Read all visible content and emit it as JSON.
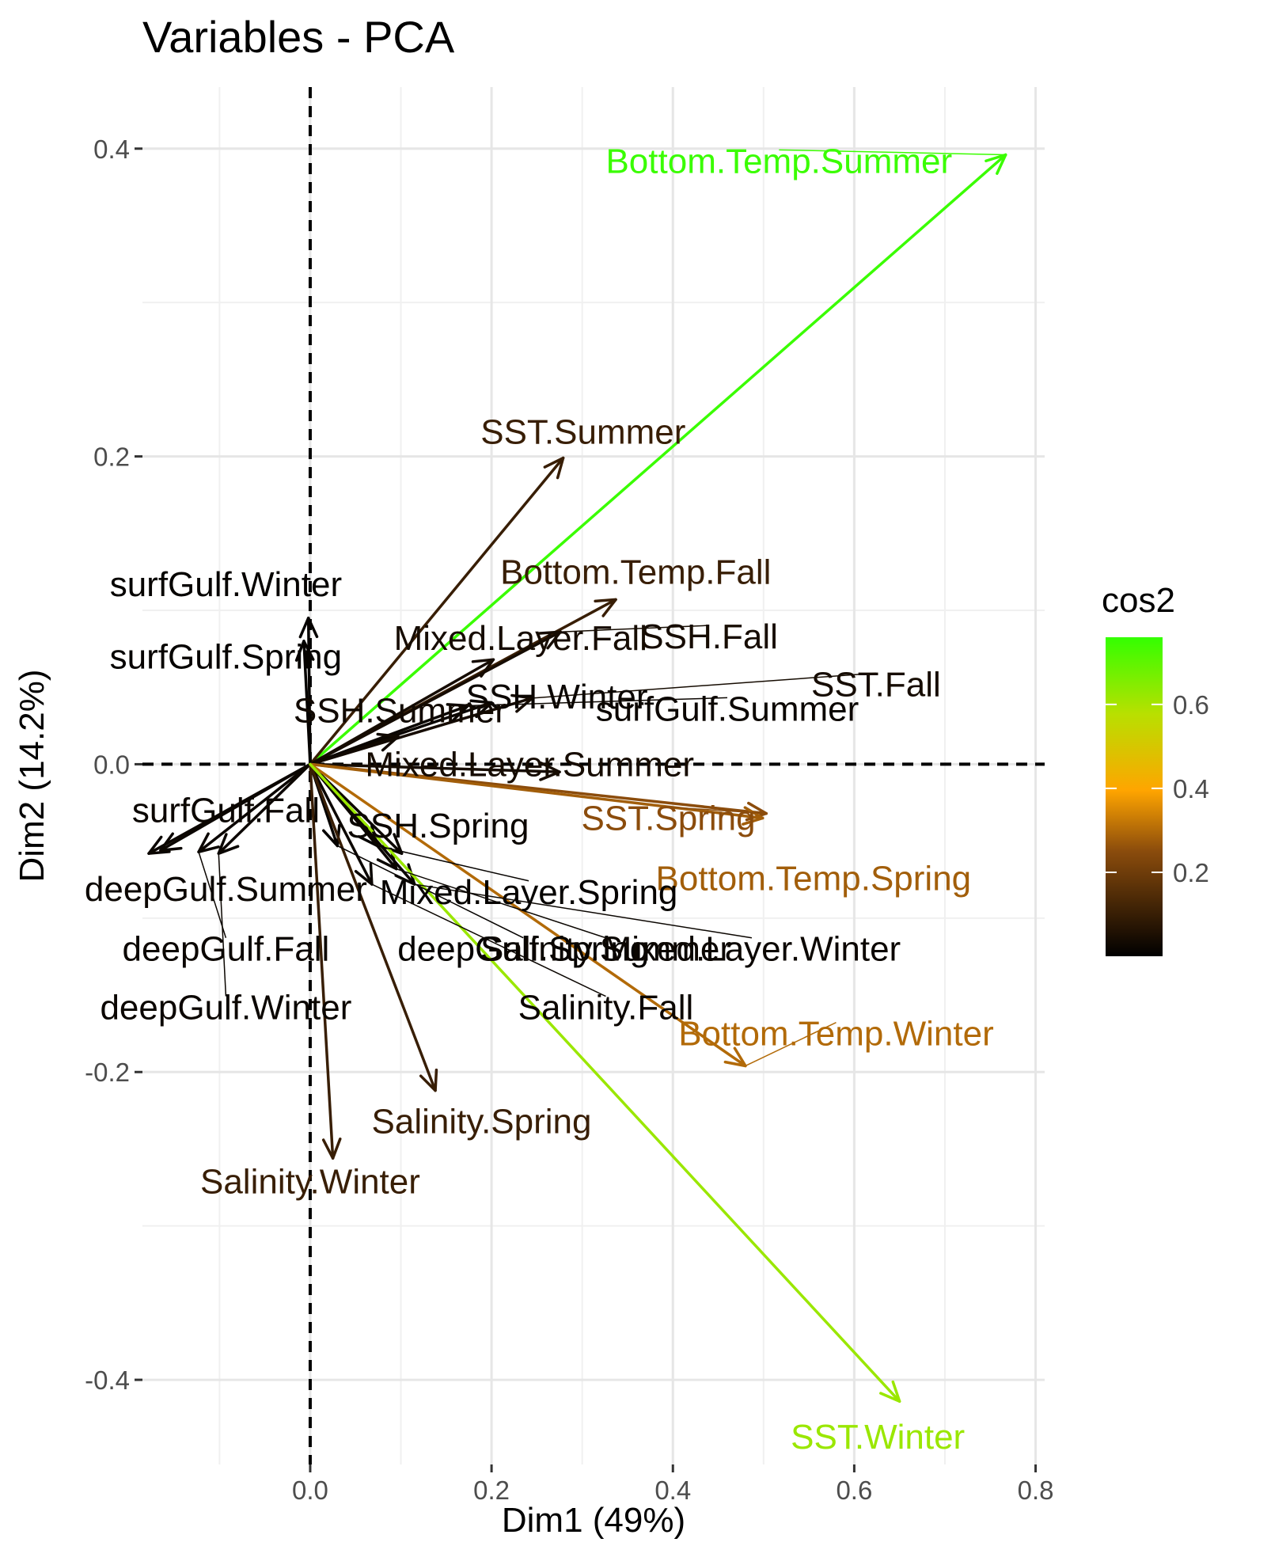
{
  "chart_data": {
    "type": "scatter",
    "title": "Variables - PCA",
    "xlabel": "Dim1 (49%)",
    "ylabel": "Dim2 (14.2%)",
    "xlim": [
      -0.185,
      0.81
    ],
    "ylim": [
      -0.455,
      0.44
    ],
    "x_ticks": [
      0.0,
      0.2,
      0.4,
      0.6,
      0.8
    ],
    "x_tick_labels": [
      "0.0",
      "0.2",
      "0.4",
      "0.6",
      "0.8"
    ],
    "y_ticks": [
      -0.4,
      -0.2,
      0.0,
      0.2,
      0.4
    ],
    "y_tick_labels": [
      "-0.4",
      "-0.2",
      "0.0",
      "0.2",
      "0.4"
    ],
    "grid": true,
    "reference_lines": {
      "x": 0,
      "y": 0,
      "style": "dashed"
    },
    "legend": {
      "title": "cos2",
      "position": "right",
      "range": [
        0.0,
        0.76
      ],
      "ticks": [
        0.2,
        0.4,
        0.6
      ],
      "tick_labels": [
        "0.2",
        "0.4",
        "0.6"
      ],
      "colors": [
        "#000000",
        "#8b4c0c",
        "#ffa500",
        "#b8e000",
        "#33ff00"
      ]
    },
    "arrows": [
      {
        "name": "Bottom.Temp.Summer",
        "x": 0.767,
        "y": 0.396,
        "cos2": 0.75,
        "label_x": 0.517,
        "label_y": 0.392,
        "label_anchor": "middle"
      },
      {
        "name": "SST.Summer",
        "x": 0.279,
        "y": 0.199,
        "cos2": 0.1,
        "label_x": 0.301,
        "label_y": 0.216,
        "label_anchor": "middle"
      },
      {
        "name": "Bottom.Temp.Fall",
        "x": 0.337,
        "y": 0.107,
        "cos2": 0.1,
        "label_x": 0.359,
        "label_y": 0.125,
        "label_anchor": "middle"
      },
      {
        "name": "SSH.Fall",
        "x": 0.276,
        "y": 0.086,
        "cos2": 0.04,
        "label_x": 0.44,
        "label_y": 0.083,
        "label_anchor": "middle"
      },
      {
        "name": "Mixed.Layer.Fall",
        "x": 0.202,
        "y": 0.068,
        "cos2": 0.04,
        "label_x": 0.232,
        "label_y": 0.082,
        "label_anchor": "middle"
      },
      {
        "name": "SST.Fall",
        "x": 0.245,
        "y": 0.043,
        "cos2": 0.04,
        "label_x": 0.624,
        "label_y": 0.052,
        "label_anchor": "middle"
      },
      {
        "name": "SSH.Winter",
        "x": 0.2,
        "y": 0.04,
        "cos2": 0.02,
        "label_x": 0.272,
        "label_y": 0.044,
        "label_anchor": "middle"
      },
      {
        "name": "surfGulf.Summer",
        "x": 0.174,
        "y": 0.038,
        "cos2": 0.02,
        "label_x": 0.46,
        "label_y": 0.036,
        "label_anchor": "middle"
      },
      {
        "name": "SSH.Summer",
        "x": 0.097,
        "y": 0.018,
        "cos2": 0.03,
        "label_x": 0.099,
        "label_y": 0.035,
        "label_anchor": "middle"
      },
      {
        "name": "surfGulf.Winter",
        "x": -0.002,
        "y": 0.095,
        "cos2": 0.01,
        "label_x": -0.093,
        "label_y": 0.117,
        "label_anchor": "middle"
      },
      {
        "name": "surfGulf.Spring",
        "x": -0.007,
        "y": 0.08,
        "cos2": 0.01,
        "label_x": -0.093,
        "label_y": 0.07,
        "label_anchor": "middle"
      },
      {
        "name": "Mixed.Layer.Summer",
        "x": 0.275,
        "y": -0.005,
        "cos2": 0.04,
        "label_x": 0.242,
        "label_y": 0.0,
        "label_anchor": "middle"
      },
      {
        "name": "SST.Spring",
        "x": 0.503,
        "y": -0.032,
        "cos2": 0.25,
        "label_x": 0.395,
        "label_y": -0.035,
        "label_anchor": "middle"
      },
      {
        "name": "Bottom.Temp.Spring",
        "x": 0.499,
        "y": -0.035,
        "cos2": 0.28,
        "label_x": 0.555,
        "label_y": -0.074,
        "label_anchor": "middle"
      },
      {
        "name": "SSH.Spring",
        "x": 0.101,
        "y": -0.058,
        "cos2": 0.02,
        "label_x": 0.141,
        "label_y": -0.04,
        "label_anchor": "middle"
      },
      {
        "name": "surfGulf.Fall",
        "x": -0.178,
        "y": -0.058,
        "cos2": 0.02,
        "label_x": -0.093,
        "label_y": -0.03,
        "label_anchor": "middle"
      },
      {
        "name": "deepGulf.Summer",
        "x": -0.165,
        "y": -0.056,
        "cos2": 0.02,
        "label_x": -0.093,
        "label_y": -0.081,
        "label_anchor": "middle"
      },
      {
        "name": "deepGulf.Fall",
        "x": -0.123,
        "y": -0.057,
        "cos2": 0.02,
        "label_x": -0.093,
        "label_y": -0.12,
        "label_anchor": "middle"
      },
      {
        "name": "deepGulf.Winter",
        "x": -0.101,
        "y": -0.058,
        "cos2": 0.02,
        "label_x": -0.093,
        "label_y": -0.158,
        "label_anchor": "middle"
      },
      {
        "name": "Mixed.Layer.Spring",
        "x": 0.074,
        "y": -0.053,
        "cos2": 0.01,
        "label_x": 0.241,
        "label_y": -0.083,
        "label_anchor": "middle"
      },
      {
        "name": "deepGulf.Spring",
        "x": 0.03,
        "y": -0.053,
        "cos2": 0.01,
        "label_x": 0.235,
        "label_y": -0.12,
        "label_anchor": "middle"
      },
      {
        "name": "Salinity.Summer",
        "x": 0.095,
        "y": -0.068,
        "cos2": 0.02,
        "label_x": 0.326,
        "label_y": -0.12,
        "label_anchor": "middle"
      },
      {
        "name": "Mixed.Layer.Winter",
        "x": 0.115,
        "y": -0.078,
        "cos2": 0.02,
        "label_x": 0.487,
        "label_y": -0.12,
        "label_anchor": "middle"
      },
      {
        "name": "Salinity.Fall",
        "x": 0.068,
        "y": -0.078,
        "cos2": 0.02,
        "label_x": 0.326,
        "label_y": -0.158,
        "label_anchor": "middle"
      },
      {
        "name": "Bottom.Temp.Winter",
        "x": 0.48,
        "y": -0.196,
        "cos2": 0.3,
        "label_x": 0.58,
        "label_y": -0.175,
        "label_anchor": "middle"
      },
      {
        "name": "Salinity.Spring",
        "x": 0.138,
        "y": -0.212,
        "cos2": 0.1,
        "label_x": 0.189,
        "label_y": -0.232,
        "label_anchor": "middle"
      },
      {
        "name": "Salinity.Winter",
        "x": 0.025,
        "y": -0.256,
        "cos2": 0.1,
        "label_x": 0.0,
        "label_y": -0.271,
        "label_anchor": "middle"
      },
      {
        "name": "SST.Winter",
        "x": 0.65,
        "y": -0.414,
        "cos2": 0.62,
        "label_x": 0.626,
        "label_y": -0.437,
        "label_anchor": "middle"
      }
    ]
  }
}
